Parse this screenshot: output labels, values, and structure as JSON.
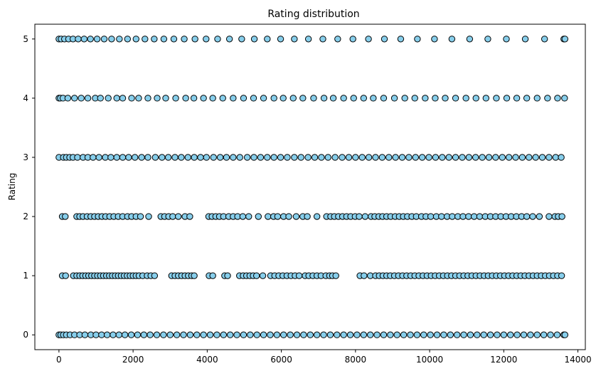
{
  "chart_data": {
    "type": "scatter",
    "title": "Rating distribution",
    "xlabel": "",
    "ylabel": "Rating",
    "xlim": [
      -650,
      14200
    ],
    "ylim": [
      -0.25,
      5.25
    ],
    "xticks": [
      0,
      2000,
      4000,
      6000,
      8000,
      10000,
      12000,
      14000
    ],
    "xtick_labels": [
      "0",
      "2000",
      "4000",
      "6000",
      "8000",
      "10000",
      "12000",
      "14000"
    ],
    "yticks": [
      0,
      1,
      2,
      3,
      4,
      5
    ],
    "ytick_labels": [
      "0",
      "1",
      "2",
      "3",
      "4",
      "5"
    ],
    "marker_fill": "#87CEEB",
    "marker_edge": "#000000",
    "grid": false,
    "series": [
      {
        "rating": 5,
        "x": [
          0,
          60,
          150,
          260,
          380,
          520,
          680,
          850,
          1030,
          1220,
          1420,
          1630,
          1850,
          2080,
          2320,
          2570,
          2830,
          3100,
          3380,
          3670,
          3970,
          4280,
          4600,
          4930,
          5270,
          5620,
          5980,
          6350,
          6730,
          7120,
          7520,
          7930,
          8350,
          8780,
          9220,
          9670,
          10130,
          10600,
          11080,
          11570,
          12070,
          12580,
          13100,
          13620,
          13650
        ]
      },
      {
        "rating": 4,
        "x": [
          0,
          40,
          110,
          240,
          420,
          600,
          780,
          980,
          1120,
          1330,
          1560,
          1720,
          1960,
          2150,
          2400,
          2650,
          2880,
          3150,
          3420,
          3640,
          3900,
          4150,
          4420,
          4700,
          4980,
          5250,
          5520,
          5800,
          6050,
          6320,
          6580,
          6870,
          7150,
          7400,
          7680,
          7950,
          8220,
          8480,
          8760,
          9050,
          9330,
          9600,
          9880,
          10150,
          10420,
          10700,
          10980,
          11250,
          11520,
          11800,
          12080,
          12350,
          12620,
          12900,
          13180,
          13450,
          13640
        ]
      },
      {
        "rating": 3,
        "x": [
          0,
          120,
          200,
          290,
          380,
          500,
          650,
          780,
          920,
          1080,
          1250,
          1400,
          1560,
          1720,
          1880,
          2050,
          2230,
          2400,
          2600,
          2780,
          2950,
          3130,
          3300,
          3480,
          3650,
          3820,
          3980,
          4170,
          4350,
          4520,
          4700,
          4880,
          5080,
          5260,
          5440,
          5620,
          5800,
          5980,
          6160,
          6350,
          6530,
          6720,
          6900,
          7080,
          7260,
          7450,
          7640,
          7820,
          8000,
          8180,
          8360,
          8540,
          8720,
          8900,
          9080,
          9260,
          9440,
          9620,
          9800,
          9980,
          10160,
          10340,
          10520,
          10700,
          10880,
          11060,
          11240,
          11420,
          11600,
          11780,
          11960,
          12140,
          12320,
          12500,
          12680,
          12860,
          13040,
          13220,
          13400,
          13550
        ]
      },
      {
        "rating": 2,
        "x": [
          90,
          170,
          480,
          560,
          650,
          760,
          860,
          960,
          1060,
          1160,
          1260,
          1370,
          1480,
          1600,
          1720,
          1850,
          1960,
          2080,
          2200,
          2420,
          2750,
          2850,
          2960,
          3070,
          3220,
          3400,
          3530,
          4040,
          4130,
          4230,
          4330,
          4440,
          4580,
          4700,
          4820,
          4960,
          5120,
          5380,
          5640,
          5790,
          5900,
          6060,
          6200,
          6400,
          6580,
          6700,
          6960,
          7220,
          7330,
          7430,
          7540,
          7650,
          7760,
          7870,
          7990,
          8100,
          8260,
          8420,
          8520,
          8630,
          8730,
          8840,
          8950,
          9070,
          9180,
          9290,
          9400,
          9520,
          9640,
          9780,
          9900,
          10030,
          10180,
          10320,
          10470,
          10610,
          10760,
          10900,
          11050,
          11200,
          11350,
          11500,
          11640,
          11780,
          11920,
          12060,
          12200,
          12340,
          12480,
          12620,
          12780,
          12960,
          13220,
          13380,
          13470,
          13570
        ]
      },
      {
        "rating": 1,
        "x": [
          90,
          180,
          390,
          480,
          560,
          640,
          720,
          800,
          880,
          960,
          1040,
          1120,
          1200,
          1280,
          1360,
          1440,
          1520,
          1600,
          1680,
          1760,
          1840,
          1920,
          2000,
          2080,
          2160,
          2260,
          2380,
          2480,
          2580,
          3040,
          3130,
          3220,
          3310,
          3400,
          3490,
          3580,
          3650,
          4050,
          4150,
          4470,
          4550,
          4870,
          4970,
          5060,
          5150,
          5240,
          5330,
          5500,
          5710,
          5820,
          5930,
          6040,
          6150,
          6260,
          6370,
          6480,
          6640,
          6740,
          6850,
          6960,
          7070,
          7200,
          7300,
          7380,
          7470,
          8120,
          8230,
          8400,
          8540,
          8640,
          8740,
          8840,
          8940,
          9050,
          9160,
          9270,
          9380,
          9490,
          9600,
          9710,
          9820,
          9930,
          10040,
          10150,
          10260,
          10370,
          10480,
          10590,
          10700,
          10810,
          10920,
          11030,
          11140,
          11250,
          11360,
          11470,
          11580,
          11690,
          11800,
          11910,
          12020,
          12130,
          12240,
          12350,
          12460,
          12570,
          12680,
          12790,
          12900,
          13010,
          13120,
          13230,
          13340,
          13450,
          13560
        ]
      },
      {
        "rating": 0,
        "x": [
          0,
          50,
          120,
          200,
          300,
          420,
          560,
          700,
          860,
          1000,
          1150,
          1300,
          1460,
          1620,
          1780,
          1950,
          2120,
          2290,
          2460,
          2640,
          2820,
          3000,
          3180,
          3360,
          3540,
          3720,
          3900,
          4080,
          4260,
          4440,
          4620,
          4800,
          4980,
          5160,
          5340,
          5520,
          5700,
          5880,
          6060,
          6240,
          6420,
          6600,
          6780,
          6960,
          7140,
          7320,
          7500,
          7680,
          7860,
          8040,
          8220,
          8400,
          8580,
          8760,
          8940,
          9120,
          9300,
          9480,
          9660,
          9840,
          10020,
          10200,
          10380,
          10560,
          10740,
          10920,
          11100,
          11280,
          11460,
          11640,
          11820,
          12000,
          12180,
          12360,
          12540,
          12720,
          12900,
          13080,
          13260,
          13440,
          13620,
          13650
        ]
      }
    ]
  }
}
